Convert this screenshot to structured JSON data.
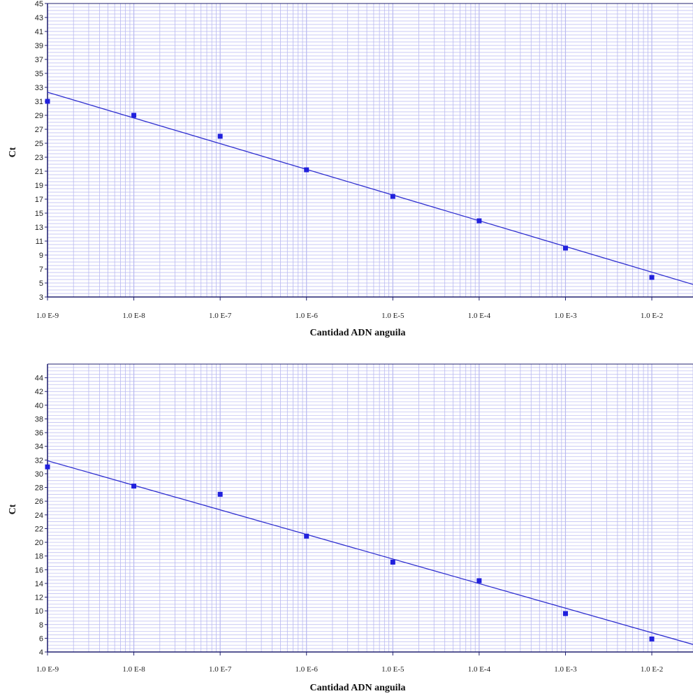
{
  "colors": {
    "grid": "#b9b9f0",
    "line": "#3030d0",
    "point": "#2020dd",
    "axis": "#202070"
  },
  "chart_data": [
    {
      "type": "scatter",
      "xscale": "log",
      "xlabel": "Cantidad ADN anguila",
      "ylabel": "Ct",
      "xlim": [
        1e-09,
        0.03
      ],
      "ylim": [
        3,
        45
      ],
      "x_ticks": [
        1e-09,
        1e-08,
        1e-07,
        1e-06,
        1e-05,
        0.0001,
        0.001,
        0.01
      ],
      "x_tick_labels": [
        "1.0 E-9",
        "1.0 E-8",
        "1.0 E-7",
        "1.0 E-6",
        "1.0 E-5",
        "1.0 E-4",
        "1.0 E-3",
        "1.0 E-2"
      ],
      "y_ticks": [
        3,
        5,
        7,
        9,
        11,
        13,
        15,
        17,
        19,
        21,
        23,
        25,
        27,
        29,
        31,
        33,
        35,
        37,
        39,
        41,
        43,
        45
      ],
      "y_tick_labels": [
        "3",
        "5",
        "7",
        "9",
        "11",
        "13",
        "15",
        "17",
        "19",
        "21",
        "23",
        "25",
        "27",
        "29",
        "31",
        "33",
        "35",
        "37",
        "39",
        "41",
        "43",
        "45"
      ],
      "grid": true,
      "series": [
        {
          "type": "scatter",
          "x": [
            1e-09,
            1e-08,
            1e-07,
            1e-06,
            1e-05,
            0.0001,
            0.001,
            0.01
          ],
          "y": [
            31,
            29,
            26,
            21.2,
            17.4,
            13.9,
            10,
            5.8
          ]
        }
      ],
      "trendline": {
        "x": [
          1e-09,
          0.03
        ],
        "y": [
          32.3,
          4.8
        ]
      }
    },
    {
      "type": "scatter",
      "xscale": "log",
      "xlabel": "Cantidad ADN anguila",
      "ylabel": "Ct",
      "xlim": [
        1e-09,
        0.03
      ],
      "ylim": [
        4,
        46
      ],
      "x_ticks": [
        1e-09,
        1e-08,
        1e-07,
        1e-06,
        1e-05,
        0.0001,
        0.001,
        0.01
      ],
      "x_tick_labels": [
        "1.0 E-9",
        "1.0 E-8",
        "1.0 E-7",
        "1.0 E-6",
        "1.0 E-5",
        "1.0 E-4",
        "1.0 E-3",
        "1.0 E-2"
      ],
      "y_ticks": [
        4,
        6,
        8,
        10,
        12,
        14,
        16,
        18,
        20,
        22,
        24,
        26,
        28,
        30,
        32,
        34,
        36,
        38,
        40,
        42,
        44
      ],
      "y_tick_labels": [
        "4",
        "6",
        "8",
        "10",
        "12",
        "14",
        "16",
        "18",
        "20",
        "22",
        "24",
        "26",
        "28",
        "30",
        "32",
        "34",
        "36",
        "38",
        "40",
        "42",
        "44"
      ],
      "grid": true,
      "series": [
        {
          "type": "scatter",
          "x": [
            1e-09,
            1e-08,
            1e-07,
            1e-06,
            1e-05,
            0.0001,
            0.001,
            0.01
          ],
          "y": [
            31,
            28.2,
            27,
            20.9,
            17.1,
            14.4,
            9.6,
            5.9
          ]
        }
      ],
      "trendline": {
        "x": [
          1e-09,
          0.03
        ],
        "y": [
          31.9,
          5.1
        ]
      }
    }
  ]
}
